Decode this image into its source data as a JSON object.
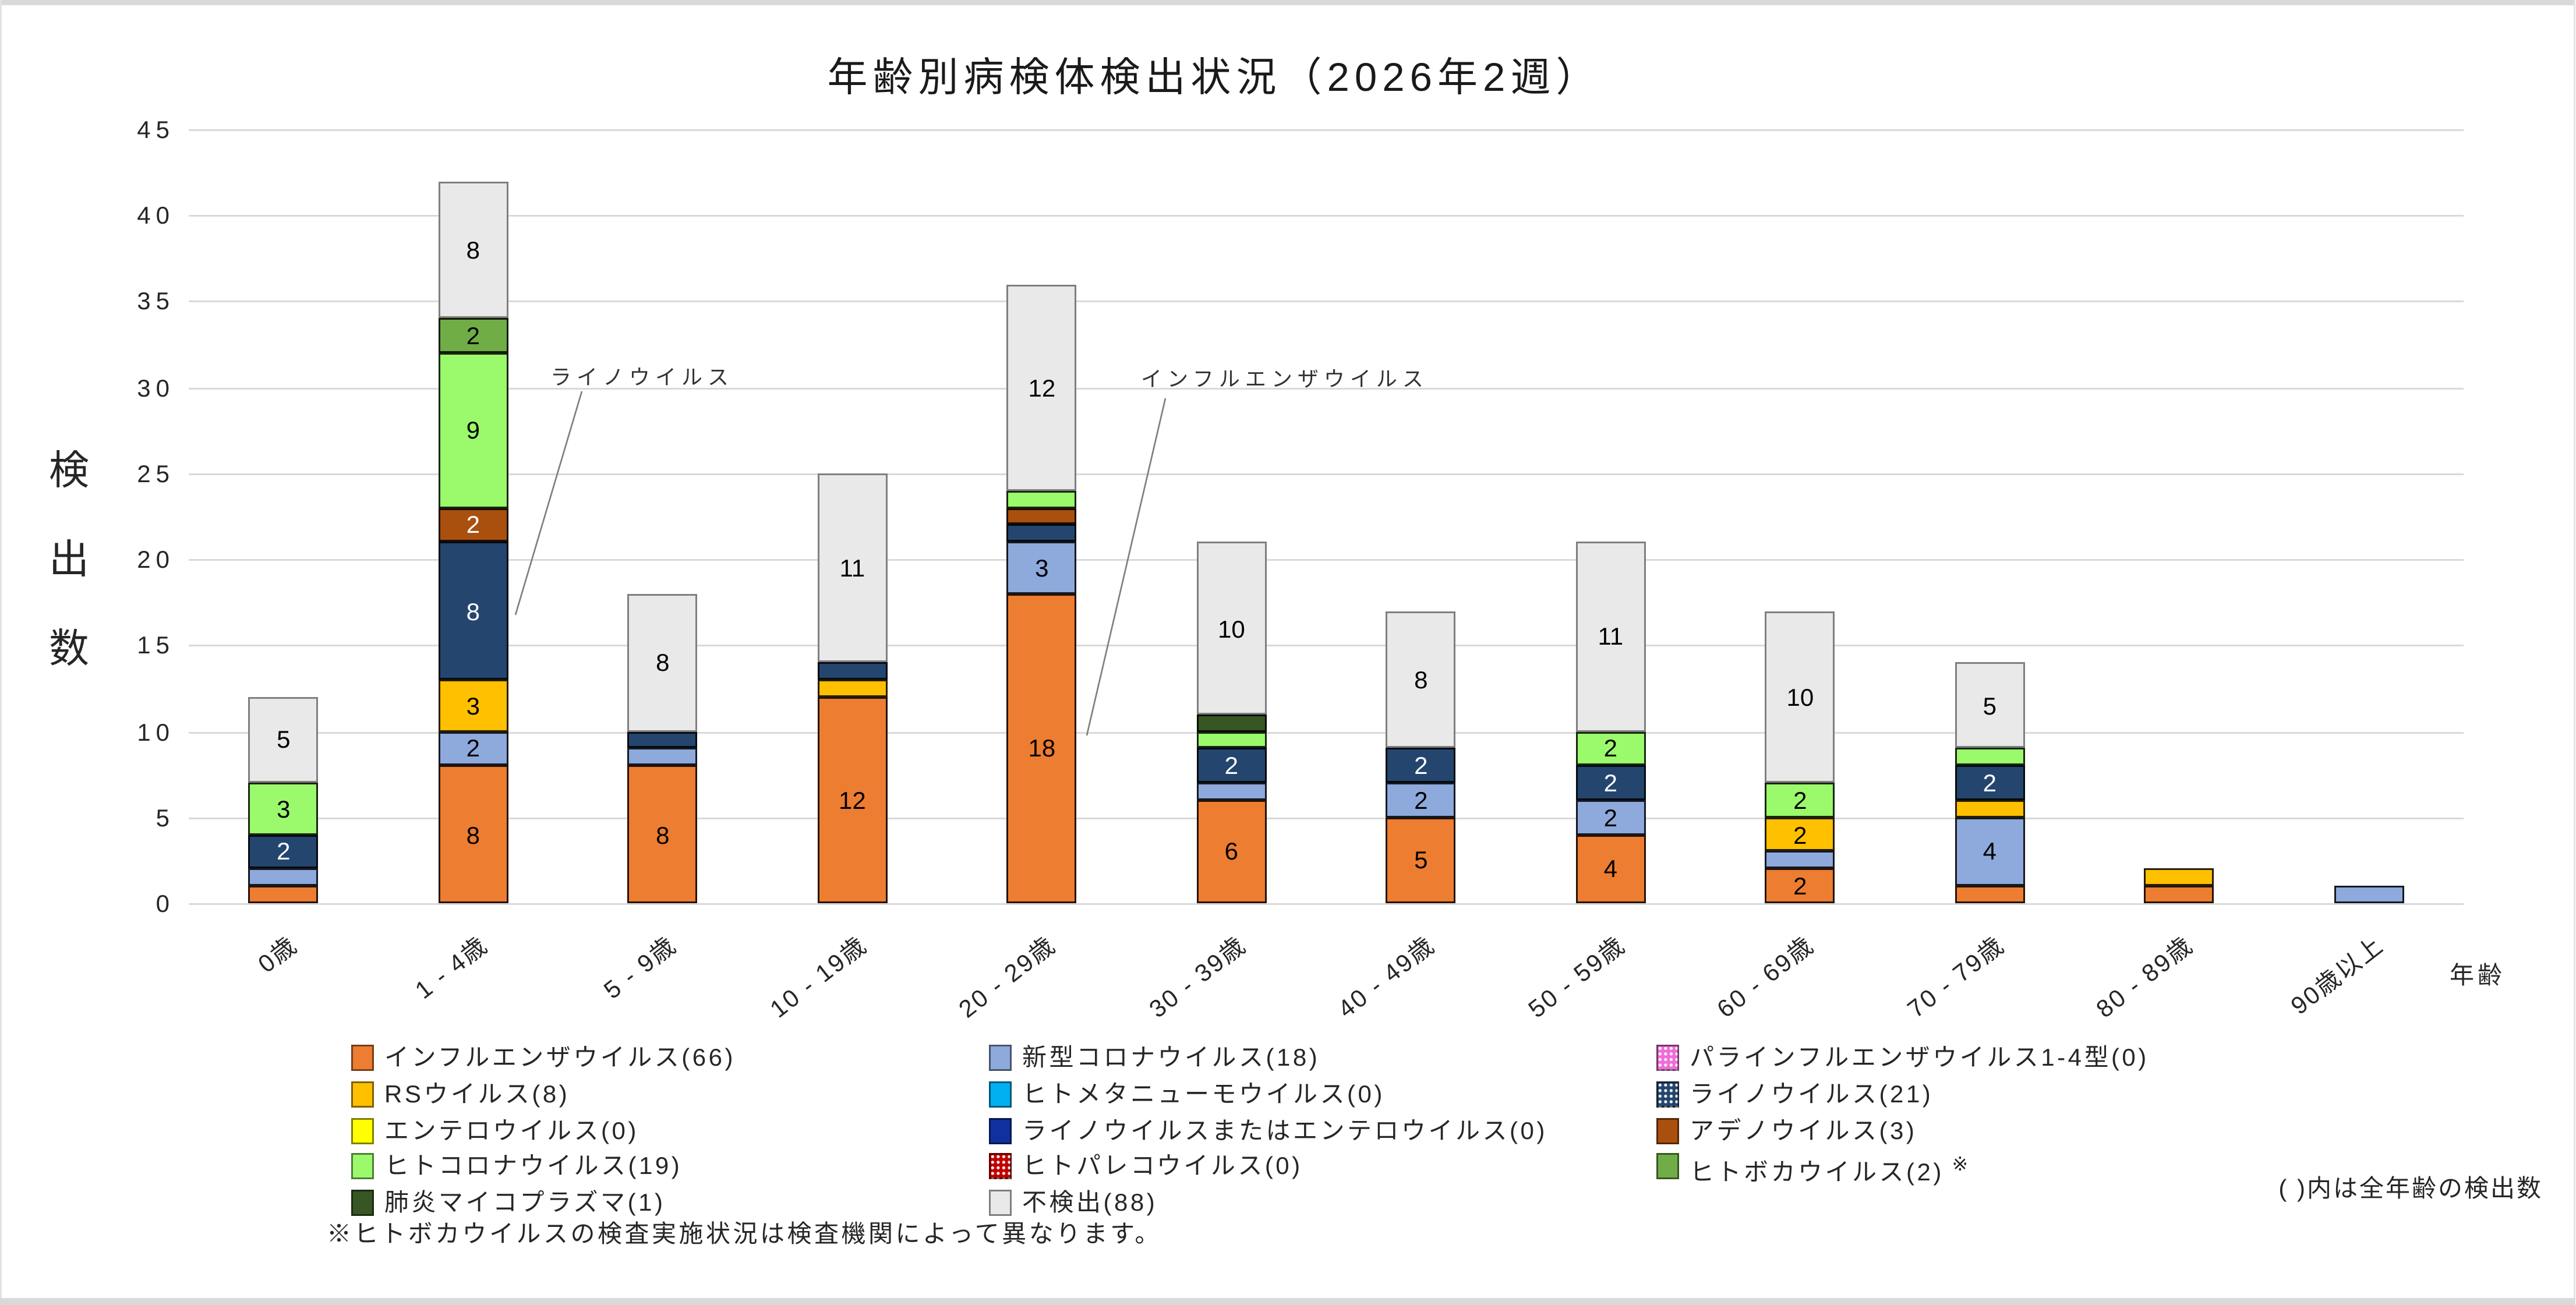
{
  "title": "年齢別病検体検出状況（2026年2週）",
  "y_axis": {
    "title": "検出数",
    "ticks": [
      45,
      40,
      35,
      30,
      25,
      20,
      15,
      10,
      5,
      0
    ]
  },
  "x_axis": {
    "title": "年齢"
  },
  "annotations": [
    {
      "id": "rhino-annotation",
      "text": "ライノウイルス"
    },
    {
      "id": "influenza-annotation",
      "text": "インフルエンザウイルス"
    }
  ],
  "notes": {
    "legend_note": "( )内は全年齢の検出数",
    "footnote": "※ヒトボカウイルスの検査実施状況は検査機関によって異なります。"
  },
  "chart_data": {
    "type": "bar",
    "stacked": true,
    "title": "年齢別病検体検出状況（2026年2週）",
    "xlabel": "年齢",
    "ylabel": "検出数",
    "ylim": [
      0,
      45
    ],
    "grid": true,
    "grid_step": 5,
    "legend_position": "bottom",
    "categories": [
      "0歳",
      "1 - 4歳",
      "5 - 9歳",
      "10 - 19歳",
      "20 - 29歳",
      "30 - 39歳",
      "40 - 49歳",
      "50 - 59歳",
      "60 - 69歳",
      "70 - 79歳",
      "80 - 89歳",
      "90歳以上"
    ],
    "series": [
      {
        "name": "インフルエンザウイルス",
        "legend_label": "インフルエンザウイルス(66)",
        "total": 66,
        "color": "#ED7D31",
        "pattern": "solid",
        "label_color": "#000000",
        "values": [
          1,
          8,
          8,
          12,
          18,
          6,
          5,
          4,
          2,
          1,
          1,
          0
        ]
      },
      {
        "name": "新型コロナウイルス",
        "legend_label": "新型コロナウイルス(18)",
        "total": 18,
        "color": "#8EA9DB",
        "pattern": "solid",
        "label_color": "#000000",
        "values": [
          1,
          2,
          1,
          0,
          3,
          1,
          2,
          2,
          1,
          4,
          0,
          1
        ]
      },
      {
        "name": "パラインフルエンザウイルス1-4型",
        "legend_label": "パラインフルエンザウイルス1-4型(0)",
        "total": 0,
        "color": "#F06CD8",
        "pattern": "dots",
        "label_color": "#000000",
        "values": [
          0,
          0,
          0,
          0,
          0,
          0,
          0,
          0,
          0,
          0,
          0,
          0
        ]
      },
      {
        "name": "RSウイルス",
        "legend_label": "RSウイルス(8)",
        "total": 8,
        "color": "#FFC000",
        "pattern": "solid",
        "label_color": "#000000",
        "values": [
          0,
          3,
          0,
          1,
          0,
          0,
          0,
          0,
          2,
          1,
          1,
          0
        ]
      },
      {
        "name": "ヒトメタニューモウイルス",
        "legend_label": "ヒトメタニューモウイルス(0)",
        "total": 0,
        "color": "#00B0F0",
        "pattern": "solid",
        "label_color": "#000000",
        "values": [
          0,
          0,
          0,
          0,
          0,
          0,
          0,
          0,
          0,
          0,
          0,
          0
        ]
      },
      {
        "name": "ライノウイルス",
        "legend_label": "ライノウイルス(21)",
        "total": 21,
        "color": "#24466E",
        "pattern": "dots",
        "label_color": "#FFFFFF",
        "values": [
          2,
          8,
          1,
          1,
          1,
          2,
          2,
          2,
          0,
          2,
          0,
          0
        ]
      },
      {
        "name": "エンテロウイルス",
        "legend_label": "エンテロウイルス(0)",
        "total": 0,
        "color": "#FFFF00",
        "pattern": "solid",
        "label_color": "#000000",
        "values": [
          0,
          0,
          0,
          0,
          0,
          0,
          0,
          0,
          0,
          0,
          0,
          0
        ]
      },
      {
        "name": "ライノウイルスまたはエンテロウイルス",
        "legend_label": "ライノウイルスまたはエンテロウイルス(0)",
        "total": 0,
        "color": "#10309F",
        "pattern": "solid",
        "label_color": "#FFFFFF",
        "values": [
          0,
          0,
          0,
          0,
          0,
          0,
          0,
          0,
          0,
          0,
          0,
          0
        ]
      },
      {
        "name": "アデノウイルス",
        "legend_label": "アデノウイルス(3)",
        "total": 3,
        "color": "#A9500F",
        "pattern": "solid",
        "label_color": "#FFFFFF",
        "values": [
          0,
          2,
          0,
          0,
          1,
          0,
          0,
          0,
          0,
          0,
          0,
          0
        ]
      },
      {
        "name": "ヒトコロナウイルス",
        "legend_label": "ヒトコロナウイルス(19)",
        "total": 19,
        "color": "#9BFA6C",
        "pattern": "solid",
        "label_color": "#000000",
        "values": [
          3,
          9,
          0,
          0,
          1,
          1,
          0,
          2,
          2,
          1,
          0,
          0
        ]
      },
      {
        "name": "ヒトパレコウイルス",
        "legend_label": "ヒトパレコウイルス(0)",
        "total": 0,
        "color": "#C00000",
        "pattern": "dots",
        "label_color": "#FFFFFF",
        "values": [
          0,
          0,
          0,
          0,
          0,
          0,
          0,
          0,
          0,
          0,
          0,
          0
        ]
      },
      {
        "name": "ヒトボカウイルス",
        "legend_label": "ヒトボカウイルス(2)",
        "legend_suffix": "※",
        "total": 2,
        "color": "#70AD47",
        "pattern": "solid",
        "label_color": "#000000",
        "values": [
          0,
          2,
          0,
          0,
          0,
          0,
          0,
          0,
          0,
          0,
          0,
          0
        ]
      },
      {
        "name": "肺炎マイコプラズマ",
        "legend_label": "肺炎マイコプラズマ(1)",
        "total": 1,
        "color": "#375623",
        "pattern": "solid",
        "label_color": "#FFFFFF",
        "values": [
          0,
          0,
          0,
          0,
          0,
          1,
          0,
          0,
          0,
          0,
          0,
          0
        ]
      },
      {
        "name": "不検出",
        "legend_label": "不検出(88)",
        "total": 88,
        "color": "#E9E9E9",
        "border_color": "#7F7F7F",
        "pattern": "solid",
        "label_color": "#000000",
        "values": [
          5,
          8,
          8,
          11,
          12,
          10,
          8,
          11,
          10,
          5,
          0,
          0
        ]
      }
    ],
    "legend_columns": [
      [
        0,
        3,
        6,
        9,
        12
      ],
      [
        1,
        4,
        7,
        10,
        13
      ],
      [
        2,
        5,
        8,
        11
      ]
    ]
  }
}
